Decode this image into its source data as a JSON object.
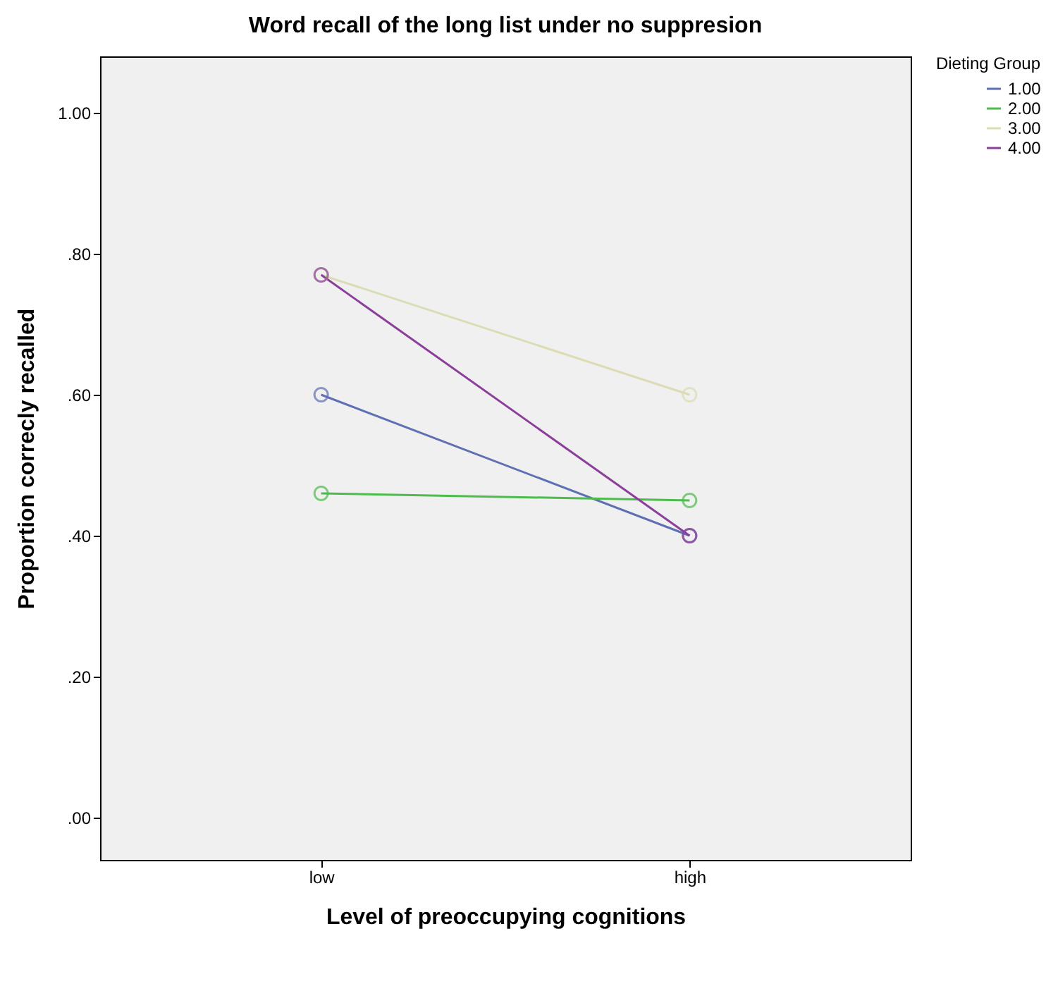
{
  "chart_data": {
    "type": "line",
    "title": "Word recall of the long list under no suppresion",
    "xlabel": "Level of preoccupying cognitions",
    "ylabel": "Proportion correcly recalled",
    "legend_title": "Dieting Group",
    "categories": [
      "low",
      "high"
    ],
    "series": [
      {
        "name": "1.00",
        "color": "#5f6fb3",
        "values": [
          0.6,
          0.4
        ]
      },
      {
        "name": "2.00",
        "color": "#4dbb4d",
        "values": [
          0.46,
          0.45
        ]
      },
      {
        "name": "3.00",
        "color": "#dcdcb4",
        "values": [
          0.77,
          0.6
        ]
      },
      {
        "name": "4.00",
        "color": "#8c3f9a",
        "values": [
          0.77,
          0.4
        ]
      }
    ],
    "ylim": [
      -0.06,
      1.08
    ],
    "yticks": [
      {
        "value": 0,
        "label": ".00"
      },
      {
        "value": 0.2,
        "label": ".20"
      },
      {
        "value": 0.4,
        "label": ".40"
      },
      {
        "value": 0.6,
        "label": ".60"
      },
      {
        "value": 0.8,
        "label": ".80"
      },
      {
        "value": 1,
        "label": "1.00"
      }
    ],
    "grid": false,
    "legend": "top right",
    "marker": "circle",
    "line_style": "solid"
  }
}
